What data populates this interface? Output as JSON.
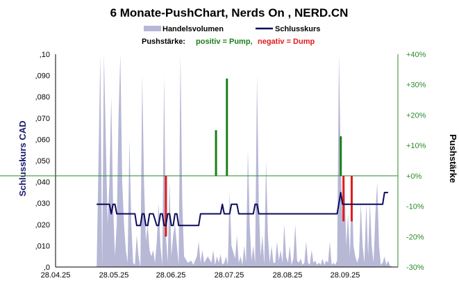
{
  "chart_data": {
    "type": "line",
    "title": "6 Monate-PushChart, Nerds On , NERD.CN",
    "legend": {
      "volume": "Handelsvolumen",
      "close": "Schlusskurs",
      "push_label": "Pushstärke:",
      "push_positive": "positiv = Pump,",
      "push_negative": "negativ = Dump"
    },
    "ylabel_left": "Schlusskurs CAD",
    "ylabel_right": "Pushstärke",
    "ylim_left": [
      0,
      0.1
    ],
    "ylim_right": [
      -30,
      40
    ],
    "left_ticks": [
      ",0",
      ",010",
      ",020",
      ",030",
      ",040",
      ",050",
      ",060",
      ",070",
      ",080",
      ",090",
      ",10"
    ],
    "right_ticks": [
      "-30%",
      "-20%",
      "-10%",
      "+0%",
      "+10%",
      "+20%",
      "+30%",
      "+40%"
    ],
    "x_ticks": [
      "28.04.25",
      "28.05.25",
      "28.06.25",
      "28.07.25",
      "28.08.25",
      "28.09.25"
    ],
    "x_range_days": [
      0,
      174
    ],
    "colors": {
      "volume": "#b7b7d6",
      "close": "#0b0b5e",
      "pump": "#1a7f1a",
      "dump": "#e01b1b",
      "right_axis": "#2a8a2a",
      "zero_line": "#2a8a2a"
    },
    "volume": [
      [
        10,
        0
      ],
      [
        12,
        1
      ],
      [
        13,
        0
      ],
      [
        14,
        1
      ],
      [
        16,
        0.2
      ],
      [
        17,
        0.4
      ],
      [
        18,
        0.8
      ],
      [
        19,
        0.3
      ],
      [
        20,
        0.05
      ],
      [
        21,
        0.2
      ],
      [
        22,
        0.7
      ],
      [
        23,
        1
      ],
      [
        24,
        0.4
      ],
      [
        25,
        0.2
      ],
      [
        26,
        0.08
      ],
      [
        27,
        0.02
      ],
      [
        28,
        0.6
      ],
      [
        29,
        0.2
      ],
      [
        30,
        0.02
      ],
      [
        31,
        0.01
      ],
      [
        32,
        0.15
      ],
      [
        33,
        0.05
      ],
      [
        34,
        0
      ],
      [
        35,
        0.9
      ],
      [
        36,
        0.4
      ],
      [
        37,
        0.12
      ],
      [
        38,
        0.2
      ],
      [
        39,
        0.08
      ],
      [
        40,
        0.05
      ],
      [
        41,
        0.08
      ],
      [
        42,
        0.02
      ],
      [
        43,
        0.12
      ],
      [
        44,
        0.3
      ],
      [
        45,
        0.1
      ],
      [
        46,
        0.01
      ],
      [
        47,
        0.9
      ],
      [
        48,
        0.15
      ],
      [
        49,
        0.02
      ],
      [
        50,
        0.4
      ],
      [
        51,
        0.05
      ],
      [
        52,
        0.15
      ],
      [
        53,
        0.2
      ],
      [
        54,
        0.1
      ],
      [
        55,
        0.01
      ],
      [
        56,
        1
      ],
      [
        57,
        0.3
      ],
      [
        58,
        0.05
      ],
      [
        60,
        0.02
      ],
      [
        62,
        0.03
      ],
      [
        63,
        0.01
      ],
      [
        65,
        0.05
      ],
      [
        66,
        0.12
      ],
      [
        67,
        0.02
      ],
      [
        68,
        0.08
      ],
      [
        69,
        0.02
      ],
      [
        71,
        0.05
      ],
      [
        73,
        0.02
      ],
      [
        74,
        0.08
      ],
      [
        75,
        0.01
      ],
      [
        76,
        0.05
      ],
      [
        77,
        0.02
      ],
      [
        78,
        0.06
      ],
      [
        79,
        0.01
      ],
      [
        80,
        0.02
      ],
      [
        81,
        0.05
      ],
      [
        82,
        0.01
      ],
      [
        83,
        0.35
      ],
      [
        84,
        0.1
      ],
      [
        86,
        0.04
      ],
      [
        87,
        0.15
      ],
      [
        88,
        0.02
      ],
      [
        89,
        0.05
      ],
      [
        90,
        0.01
      ],
      [
        91,
        0.1
      ],
      [
        92,
        0.02
      ],
      [
        93,
        0.55
      ],
      [
        94,
        0.2
      ],
      [
        95,
        0.03
      ],
      [
        96,
        0.1
      ],
      [
        97,
        0.02
      ],
      [
        98,
        0.9
      ],
      [
        99,
        0.3
      ],
      [
        100,
        0.05
      ],
      [
        101,
        0.15
      ],
      [
        102,
        0.01
      ],
      [
        103,
        0.5
      ],
      [
        104,
        0.15
      ],
      [
        105,
        0.02
      ],
      [
        106,
        0.1
      ],
      [
        107,
        0.02
      ],
      [
        108,
        0.02
      ],
      [
        109,
        0.12
      ],
      [
        110,
        0.03
      ],
      [
        111,
        0.08
      ],
      [
        112,
        0.02
      ],
      [
        113,
        0.2
      ],
      [
        114,
        0.05
      ],
      [
        115,
        0.02
      ],
      [
        116,
        0.1
      ],
      [
        117,
        0.01
      ],
      [
        118,
        0.04
      ],
      [
        119,
        0.2
      ],
      [
        120,
        0.03
      ],
      [
        121,
        0.02
      ],
      [
        122,
        0.04
      ],
      [
        123,
        0.01
      ],
      [
        124,
        0.02
      ],
      [
        125,
        0.12
      ],
      [
        126,
        0.02
      ],
      [
        127,
        0.01
      ],
      [
        128,
        0.08
      ],
      [
        129,
        0.02
      ],
      [
        130,
        0.03
      ],
      [
        131,
        0.01
      ],
      [
        132,
        0.02
      ],
      [
        133,
        0.01
      ],
      [
        134,
        0.04
      ],
      [
        135,
        0.01
      ],
      [
        136,
        0.03
      ],
      [
        137,
        0.02
      ],
      [
        138,
        0.12
      ],
      [
        139,
        0.01
      ],
      [
        140,
        0.02
      ],
      [
        141,
        0.01
      ],
      [
        142,
        0.03
      ],
      [
        143,
        1
      ],
      [
        144,
        0.5
      ],
      [
        145,
        0.2
      ],
      [
        146,
        0.4
      ],
      [
        147,
        0.1
      ],
      [
        148,
        0.25
      ],
      [
        149,
        0.05
      ],
      [
        150,
        0.4
      ],
      [
        151,
        0.1
      ],
      [
        152,
        0.05
      ],
      [
        153,
        0.02
      ],
      [
        154,
        0.05
      ],
      [
        155,
        0.3
      ],
      [
        156,
        0.1
      ],
      [
        157,
        0.02
      ],
      [
        158,
        0.3
      ],
      [
        159,
        0.05
      ],
      [
        160,
        0.3
      ],
      [
        161,
        0.1
      ],
      [
        162,
        0.02
      ],
      [
        163,
        0.25
      ],
      [
        164,
        0.4
      ],
      [
        165,
        0.1
      ],
      [
        166,
        0.01
      ],
      [
        167,
        0.02
      ],
      [
        168,
        0.05
      ],
      [
        169,
        0.01
      ],
      [
        170,
        0.03
      ],
      [
        171,
        0.005
      ],
      [
        172,
        0.005
      ]
    ],
    "close_steps": [
      [
        10,
        0.0295
      ],
      [
        17,
        0.0295
      ],
      [
        18,
        0.025
      ],
      [
        19,
        0.0295
      ],
      [
        20,
        0.0295
      ],
      [
        21,
        0.025
      ],
      [
        31,
        0.025
      ],
      [
        32,
        0.0195
      ],
      [
        34,
        0.0195
      ],
      [
        35,
        0.025
      ],
      [
        36,
        0.025
      ],
      [
        37,
        0.0195
      ],
      [
        38,
        0.0195
      ],
      [
        39,
        0.025
      ],
      [
        41,
        0.025
      ],
      [
        43,
        0.0195
      ],
      [
        44,
        0.0195
      ],
      [
        45,
        0.025
      ],
      [
        46,
        0.025
      ],
      [
        47,
        0.0195
      ],
      [
        48,
        0.0195
      ],
      [
        49,
        0.025
      ],
      [
        50,
        0.025
      ],
      [
        51,
        0.0195
      ],
      [
        52,
        0.0195
      ],
      [
        53,
        0.025
      ],
      [
        54,
        0.025
      ],
      [
        55,
        0.0195
      ],
      [
        66,
        0.0195
      ],
      [
        67,
        0.025
      ],
      [
        78,
        0.025
      ],
      [
        79,
        0.0295
      ],
      [
        80,
        0.025
      ],
      [
        83,
        0.025
      ],
      [
        84,
        0.0295
      ],
      [
        87,
        0.0295
      ],
      [
        88,
        0.025
      ],
      [
        96,
        0.025
      ],
      [
        97,
        0.0295
      ],
      [
        98,
        0.0295
      ],
      [
        99,
        0.025
      ],
      [
        142,
        0.025
      ],
      [
        144,
        0.035
      ],
      [
        145,
        0.0295
      ],
      [
        167,
        0.0295
      ],
      [
        168,
        0.035
      ],
      [
        170,
        0.035
      ]
    ],
    "push": [
      {
        "x": 48,
        "value": -20
      },
      {
        "x": 75.5,
        "value": 15
      },
      {
        "x": 81.5,
        "value": 32
      },
      {
        "x": 144,
        "value": 13
      },
      {
        "x": 145.5,
        "value": -15
      },
      {
        "x": 150,
        "value": -15
      }
    ]
  }
}
